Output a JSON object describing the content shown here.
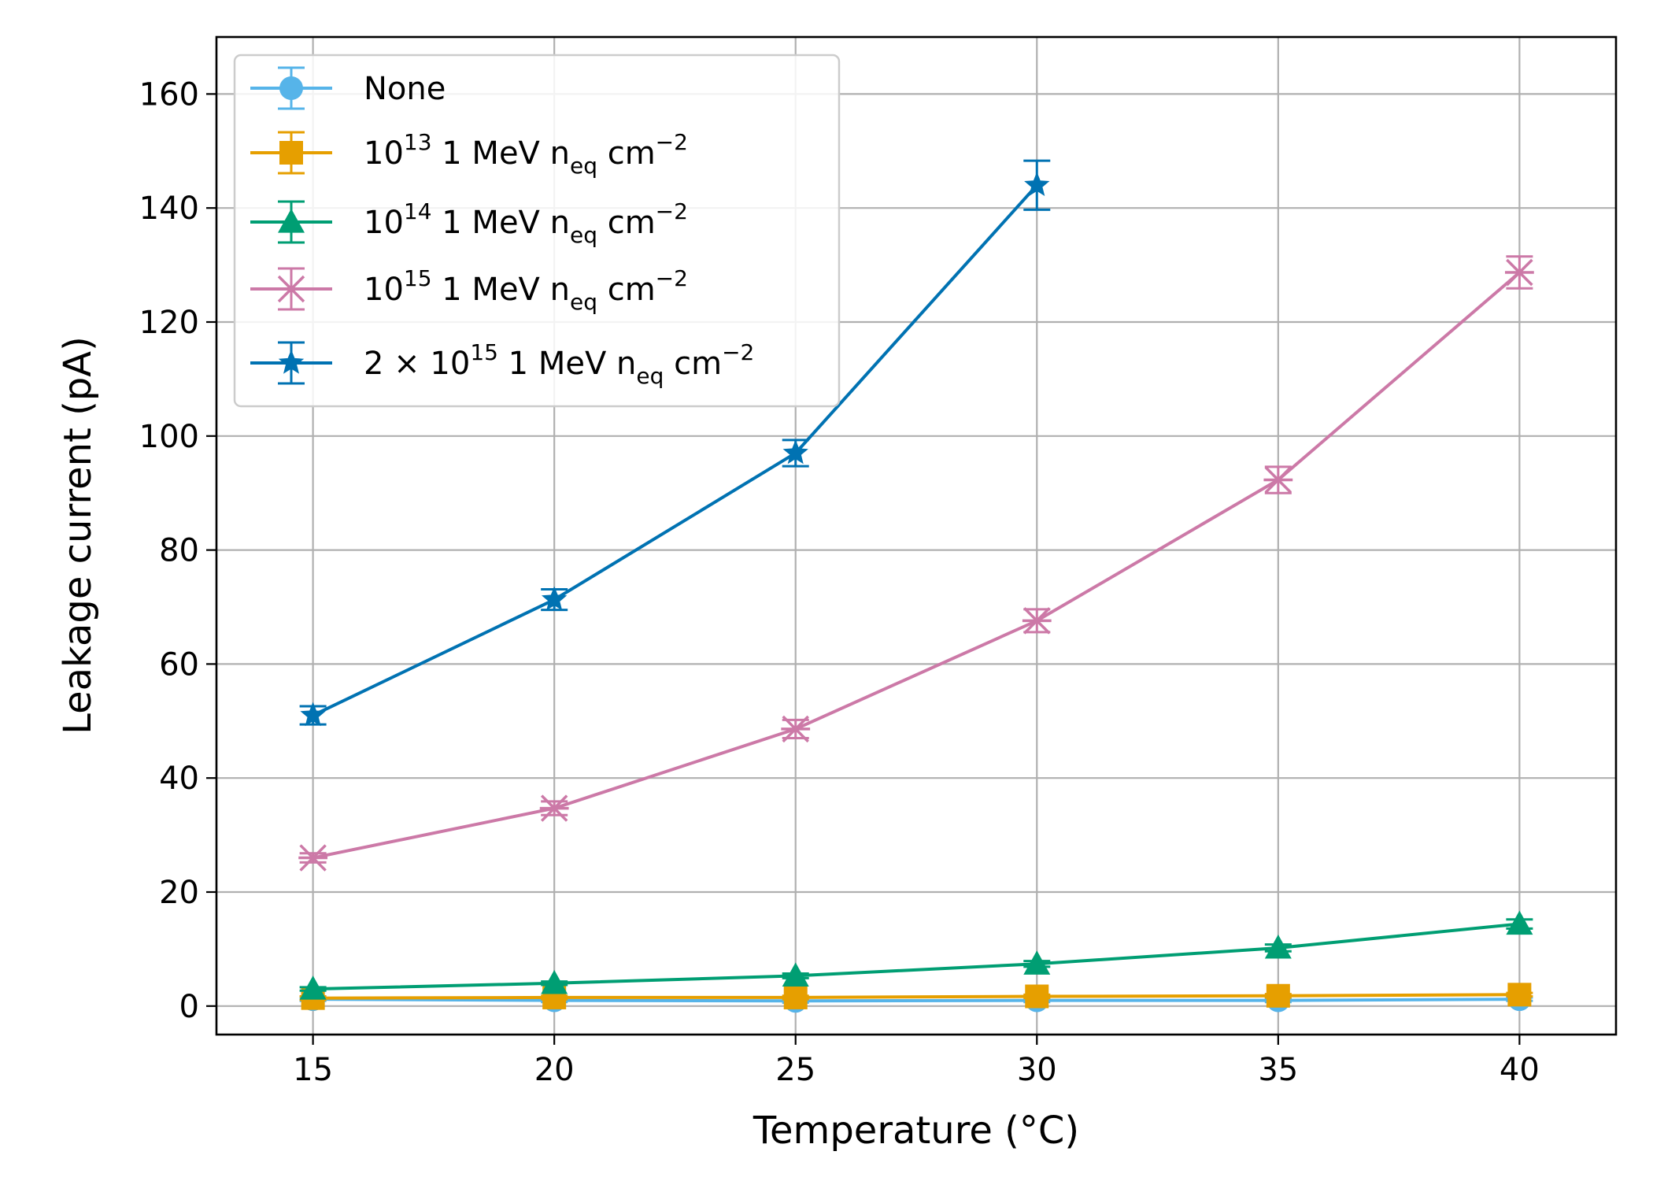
{
  "chart_data": {
    "type": "line",
    "title": "",
    "xlabel": "Temperature (°C)",
    "ylabel": "Leakage current (pA)",
    "xlim": [
      13,
      42
    ],
    "ylim": [
      -5,
      170
    ],
    "grid": true,
    "legend_position": "top-left",
    "x_ticks": [
      15,
      20,
      25,
      30,
      35,
      40
    ],
    "x_tick_labels": [
      "15",
      "20",
      "25",
      "30",
      "35",
      "40"
    ],
    "y_ticks": [
      0,
      20,
      40,
      60,
      80,
      100,
      120,
      140,
      160
    ],
    "y_tick_labels": [
      "0",
      "20",
      "40",
      "60",
      "80",
      "100",
      "120",
      "140",
      "160"
    ],
    "series": [
      {
        "name": "None",
        "legend": {
          "text": "None"
        },
        "color": "#56b4e9",
        "marker": "circle",
        "x": [
          15,
          20,
          25,
          30,
          35,
          40
        ],
        "values": [
          1.2,
          1.0,
          0.9,
          1.0,
          1.0,
          1.2
        ],
        "errors": [
          0.3,
          0.3,
          0.3,
          0.3,
          0.3,
          0.3
        ]
      },
      {
        "name": "10^13 1 MeV n_eq cm^-2",
        "legend": {
          "pre": "",
          "base": "10",
          "exp": "13",
          "mid": " 1 MeV n",
          "sub": "eq",
          "post": " cm",
          "post_exp": "−2"
        },
        "color": "#e69f00",
        "marker": "square",
        "x": [
          15,
          20,
          25,
          30,
          35,
          40
        ],
        "values": [
          1.4,
          1.5,
          1.5,
          1.7,
          1.8,
          2.0
        ],
        "errors": [
          0.3,
          0.3,
          0.3,
          0.3,
          0.3,
          0.3
        ]
      },
      {
        "name": "10^14 1 MeV n_eq cm^-2",
        "legend": {
          "pre": "",
          "base": "10",
          "exp": "14",
          "mid": " 1 MeV n",
          "sub": "eq",
          "post": " cm",
          "post_exp": "−2"
        },
        "color": "#009e73",
        "marker": "triangle",
        "x": [
          15,
          20,
          25,
          30,
          35,
          40
        ],
        "values": [
          3.0,
          4.0,
          5.3,
          7.4,
          10.2,
          14.4
        ],
        "errors": [
          0.3,
          0.3,
          0.4,
          0.5,
          0.6,
          0.8
        ]
      },
      {
        "name": "10^15 1 MeV n_eq cm^-2",
        "legend": {
          "pre": "",
          "base": "10",
          "exp": "15",
          "mid": " 1 MeV n",
          "sub": "eq",
          "post": " cm",
          "post_exp": "−2"
        },
        "color": "#cc79a7",
        "marker": "x",
        "x": [
          15,
          20,
          25,
          30,
          35,
          40
        ],
        "values": [
          26,
          34.7,
          48.6,
          67.6,
          92.3,
          128.7
        ],
        "errors": [
          0.8,
          1.2,
          1.6,
          2.0,
          2.3,
          2.8
        ]
      },
      {
        "name": "2 × 10^15 1 MeV n_eq cm^-2",
        "legend": {
          "pre": "2 × ",
          "base": "10",
          "exp": "15",
          "mid": " 1 MeV n",
          "sub": "eq",
          "post": " cm",
          "post_exp": "−2"
        },
        "color": "#0072b2",
        "marker": "star",
        "x": [
          15,
          20,
          25,
          30
        ],
        "values": [
          51,
          71.3,
          97,
          144
        ],
        "errors": [
          1.6,
          1.8,
          2.3,
          4.3
        ]
      }
    ]
  }
}
